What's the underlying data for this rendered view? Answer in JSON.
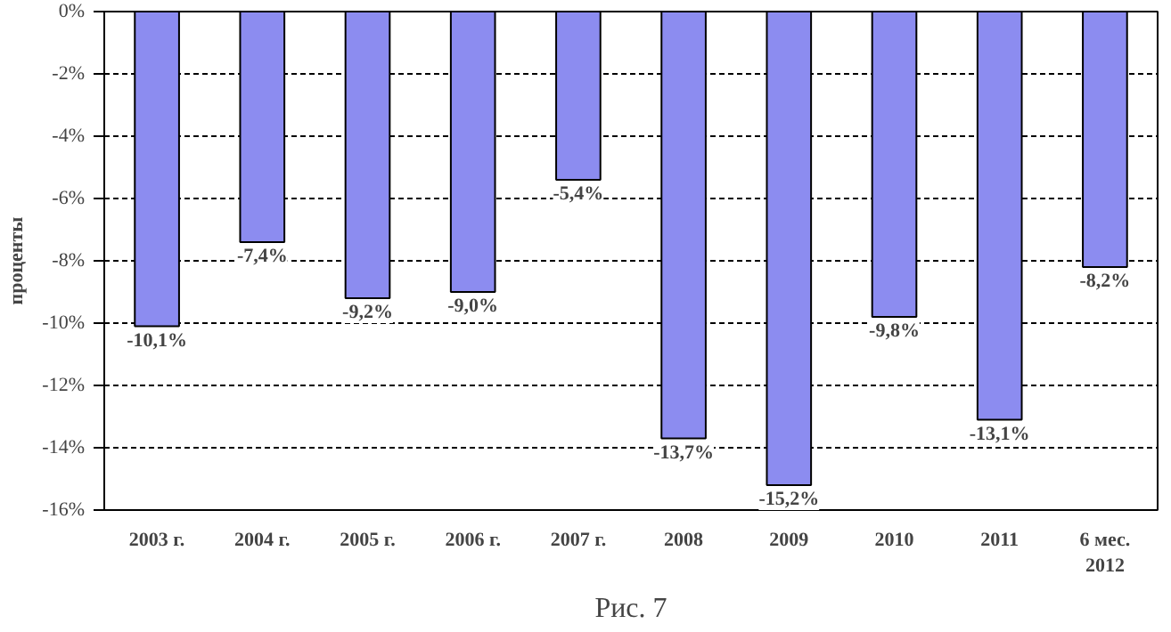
{
  "chart_data": {
    "type": "bar",
    "ylabel": "проценты",
    "categories": [
      "2003 г.",
      "2004 г.",
      "2005 г.",
      "2006 г.",
      "2007 г.",
      "2008",
      "2009",
      "2010",
      "2011",
      "6 мес.\n2012"
    ],
    "values": [
      -10.1,
      -7.4,
      -9.2,
      -9.0,
      -5.4,
      -13.7,
      -15.2,
      -9.8,
      -13.1,
      -8.2
    ],
    "value_labels": [
      "-10,1%",
      "-7,4%",
      "-9,2%",
      "-9,0%",
      "-5,4%",
      "-13,7%",
      "-15,2%",
      "-9,8%",
      "-13,1%",
      "-8,2%"
    ],
    "color": "#8c8cf0",
    "ylim": [
      -16,
      0
    ],
    "yticks": [
      {
        "value": 0,
        "label": "0%"
      },
      {
        "value": -2,
        "label": "-2%"
      },
      {
        "value": -4,
        "label": "-4%"
      },
      {
        "value": -6,
        "label": "-6%"
      },
      {
        "value": -8,
        "label": "-8%"
      },
      {
        "value": -10,
        "label": "-10%"
      },
      {
        "value": -12,
        "label": "-12%"
      },
      {
        "value": -14,
        "label": "-14%"
      },
      {
        "value": -16,
        "label": "-16%"
      }
    ],
    "grid": "y",
    "annotations": [
      "Рис. 7"
    ]
  }
}
